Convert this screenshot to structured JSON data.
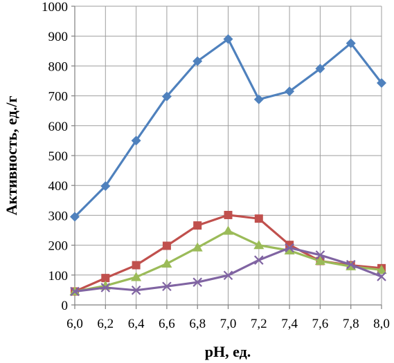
{
  "chart_data": {
    "type": "line",
    "xlabel": "pH, ед.",
    "ylabel": "Активность, ед./г",
    "x": [
      "6,0",
      "6,2",
      "6,4",
      "6,6",
      "6,8",
      "7,0",
      "7,2",
      "7,4",
      "7,6",
      "7,8",
      "8,0"
    ],
    "ylim": [
      0,
      1000
    ],
    "yticks": [
      0,
      100,
      200,
      300,
      400,
      500,
      600,
      700,
      800,
      900,
      1000
    ],
    "grid": true,
    "legend": "none",
    "series": [
      {
        "color": "#4f81bd",
        "marker": "diamond",
        "values": [
          295,
          398,
          550,
          698,
          816,
          890,
          688,
          715,
          791,
          876,
          743
        ]
      },
      {
        "color": "#c0504d",
        "marker": "square",
        "values": [
          45,
          90,
          133,
          198,
          266,
          301,
          289,
          201,
          147,
          133,
          123
        ]
      },
      {
        "color": "#9bbb59",
        "marker": "triangle",
        "values": [
          45,
          64,
          93,
          138,
          192,
          248,
          200,
          182,
          147,
          129,
          117
        ]
      },
      {
        "color": "#8064a2",
        "marker": "x",
        "values": [
          45,
          58,
          49,
          62,
          76,
          99,
          150,
          191,
          167,
          135,
          95
        ]
      }
    ]
  }
}
